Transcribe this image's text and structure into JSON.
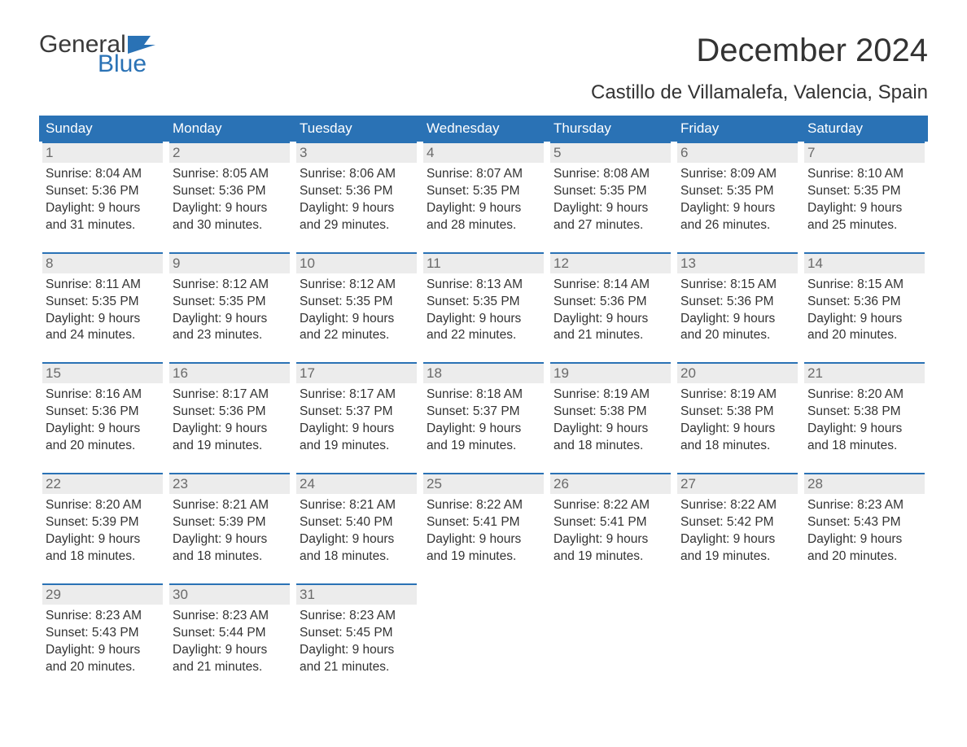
{
  "brand": {
    "top": "General",
    "bottom": "Blue",
    "accent_color": "#2a72b5"
  },
  "title": "December 2024",
  "location": "Castillo de Villamalefa, Valencia, Spain",
  "colors": {
    "header_bg": "#2a72b5",
    "header_text": "#ffffff",
    "daynum_bg": "#ececec",
    "daynum_text": "#6a6a6a",
    "body_text": "#333333",
    "page_bg": "#ffffff"
  },
  "typography": {
    "title_fontsize": 40,
    "location_fontsize": 24,
    "weekday_fontsize": 17,
    "daynum_fontsize": 17,
    "body_fontsize": 15.5
  },
  "weekdays": [
    "Sunday",
    "Monday",
    "Tuesday",
    "Wednesday",
    "Thursday",
    "Friday",
    "Saturday"
  ],
  "weeks": [
    [
      {
        "num": "1",
        "sunrise": "Sunrise: 8:04 AM",
        "sunset": "Sunset: 5:36 PM",
        "daylight1": "Daylight: 9 hours",
        "daylight2": "and 31 minutes."
      },
      {
        "num": "2",
        "sunrise": "Sunrise: 8:05 AM",
        "sunset": "Sunset: 5:36 PM",
        "daylight1": "Daylight: 9 hours",
        "daylight2": "and 30 minutes."
      },
      {
        "num": "3",
        "sunrise": "Sunrise: 8:06 AM",
        "sunset": "Sunset: 5:36 PM",
        "daylight1": "Daylight: 9 hours",
        "daylight2": "and 29 minutes."
      },
      {
        "num": "4",
        "sunrise": "Sunrise: 8:07 AM",
        "sunset": "Sunset: 5:35 PM",
        "daylight1": "Daylight: 9 hours",
        "daylight2": "and 28 minutes."
      },
      {
        "num": "5",
        "sunrise": "Sunrise: 8:08 AM",
        "sunset": "Sunset: 5:35 PM",
        "daylight1": "Daylight: 9 hours",
        "daylight2": "and 27 minutes."
      },
      {
        "num": "6",
        "sunrise": "Sunrise: 8:09 AM",
        "sunset": "Sunset: 5:35 PM",
        "daylight1": "Daylight: 9 hours",
        "daylight2": "and 26 minutes."
      },
      {
        "num": "7",
        "sunrise": "Sunrise: 8:10 AM",
        "sunset": "Sunset: 5:35 PM",
        "daylight1": "Daylight: 9 hours",
        "daylight2": "and 25 minutes."
      }
    ],
    [
      {
        "num": "8",
        "sunrise": "Sunrise: 8:11 AM",
        "sunset": "Sunset: 5:35 PM",
        "daylight1": "Daylight: 9 hours",
        "daylight2": "and 24 minutes."
      },
      {
        "num": "9",
        "sunrise": "Sunrise: 8:12 AM",
        "sunset": "Sunset: 5:35 PM",
        "daylight1": "Daylight: 9 hours",
        "daylight2": "and 23 minutes."
      },
      {
        "num": "10",
        "sunrise": "Sunrise: 8:12 AM",
        "sunset": "Sunset: 5:35 PM",
        "daylight1": "Daylight: 9 hours",
        "daylight2": "and 22 minutes."
      },
      {
        "num": "11",
        "sunrise": "Sunrise: 8:13 AM",
        "sunset": "Sunset: 5:35 PM",
        "daylight1": "Daylight: 9 hours",
        "daylight2": "and 22 minutes."
      },
      {
        "num": "12",
        "sunrise": "Sunrise: 8:14 AM",
        "sunset": "Sunset: 5:36 PM",
        "daylight1": "Daylight: 9 hours",
        "daylight2": "and 21 minutes."
      },
      {
        "num": "13",
        "sunrise": "Sunrise: 8:15 AM",
        "sunset": "Sunset: 5:36 PM",
        "daylight1": "Daylight: 9 hours",
        "daylight2": "and 20 minutes."
      },
      {
        "num": "14",
        "sunrise": "Sunrise: 8:15 AM",
        "sunset": "Sunset: 5:36 PM",
        "daylight1": "Daylight: 9 hours",
        "daylight2": "and 20 minutes."
      }
    ],
    [
      {
        "num": "15",
        "sunrise": "Sunrise: 8:16 AM",
        "sunset": "Sunset: 5:36 PM",
        "daylight1": "Daylight: 9 hours",
        "daylight2": "and 20 minutes."
      },
      {
        "num": "16",
        "sunrise": "Sunrise: 8:17 AM",
        "sunset": "Sunset: 5:36 PM",
        "daylight1": "Daylight: 9 hours",
        "daylight2": "and 19 minutes."
      },
      {
        "num": "17",
        "sunrise": "Sunrise: 8:17 AM",
        "sunset": "Sunset: 5:37 PM",
        "daylight1": "Daylight: 9 hours",
        "daylight2": "and 19 minutes."
      },
      {
        "num": "18",
        "sunrise": "Sunrise: 8:18 AM",
        "sunset": "Sunset: 5:37 PM",
        "daylight1": "Daylight: 9 hours",
        "daylight2": "and 19 minutes."
      },
      {
        "num": "19",
        "sunrise": "Sunrise: 8:19 AM",
        "sunset": "Sunset: 5:38 PM",
        "daylight1": "Daylight: 9 hours",
        "daylight2": "and 18 minutes."
      },
      {
        "num": "20",
        "sunrise": "Sunrise: 8:19 AM",
        "sunset": "Sunset: 5:38 PM",
        "daylight1": "Daylight: 9 hours",
        "daylight2": "and 18 minutes."
      },
      {
        "num": "21",
        "sunrise": "Sunrise: 8:20 AM",
        "sunset": "Sunset: 5:38 PM",
        "daylight1": "Daylight: 9 hours",
        "daylight2": "and 18 minutes."
      }
    ],
    [
      {
        "num": "22",
        "sunrise": "Sunrise: 8:20 AM",
        "sunset": "Sunset: 5:39 PM",
        "daylight1": "Daylight: 9 hours",
        "daylight2": "and 18 minutes."
      },
      {
        "num": "23",
        "sunrise": "Sunrise: 8:21 AM",
        "sunset": "Sunset: 5:39 PM",
        "daylight1": "Daylight: 9 hours",
        "daylight2": "and 18 minutes."
      },
      {
        "num": "24",
        "sunrise": "Sunrise: 8:21 AM",
        "sunset": "Sunset: 5:40 PM",
        "daylight1": "Daylight: 9 hours",
        "daylight2": "and 18 minutes."
      },
      {
        "num": "25",
        "sunrise": "Sunrise: 8:22 AM",
        "sunset": "Sunset: 5:41 PM",
        "daylight1": "Daylight: 9 hours",
        "daylight2": "and 19 minutes."
      },
      {
        "num": "26",
        "sunrise": "Sunrise: 8:22 AM",
        "sunset": "Sunset: 5:41 PM",
        "daylight1": "Daylight: 9 hours",
        "daylight2": "and 19 minutes."
      },
      {
        "num": "27",
        "sunrise": "Sunrise: 8:22 AM",
        "sunset": "Sunset: 5:42 PM",
        "daylight1": "Daylight: 9 hours",
        "daylight2": "and 19 minutes."
      },
      {
        "num": "28",
        "sunrise": "Sunrise: 8:23 AM",
        "sunset": "Sunset: 5:43 PM",
        "daylight1": "Daylight: 9 hours",
        "daylight2": "and 20 minutes."
      }
    ],
    [
      {
        "num": "29",
        "sunrise": "Sunrise: 8:23 AM",
        "sunset": "Sunset: 5:43 PM",
        "daylight1": "Daylight: 9 hours",
        "daylight2": "and 20 minutes."
      },
      {
        "num": "30",
        "sunrise": "Sunrise: 8:23 AM",
        "sunset": "Sunset: 5:44 PM",
        "daylight1": "Daylight: 9 hours",
        "daylight2": "and 21 minutes."
      },
      {
        "num": "31",
        "sunrise": "Sunrise: 8:23 AM",
        "sunset": "Sunset: 5:45 PM",
        "daylight1": "Daylight: 9 hours",
        "daylight2": "and 21 minutes."
      },
      {
        "empty": true
      },
      {
        "empty": true
      },
      {
        "empty": true
      },
      {
        "empty": true
      }
    ]
  ]
}
